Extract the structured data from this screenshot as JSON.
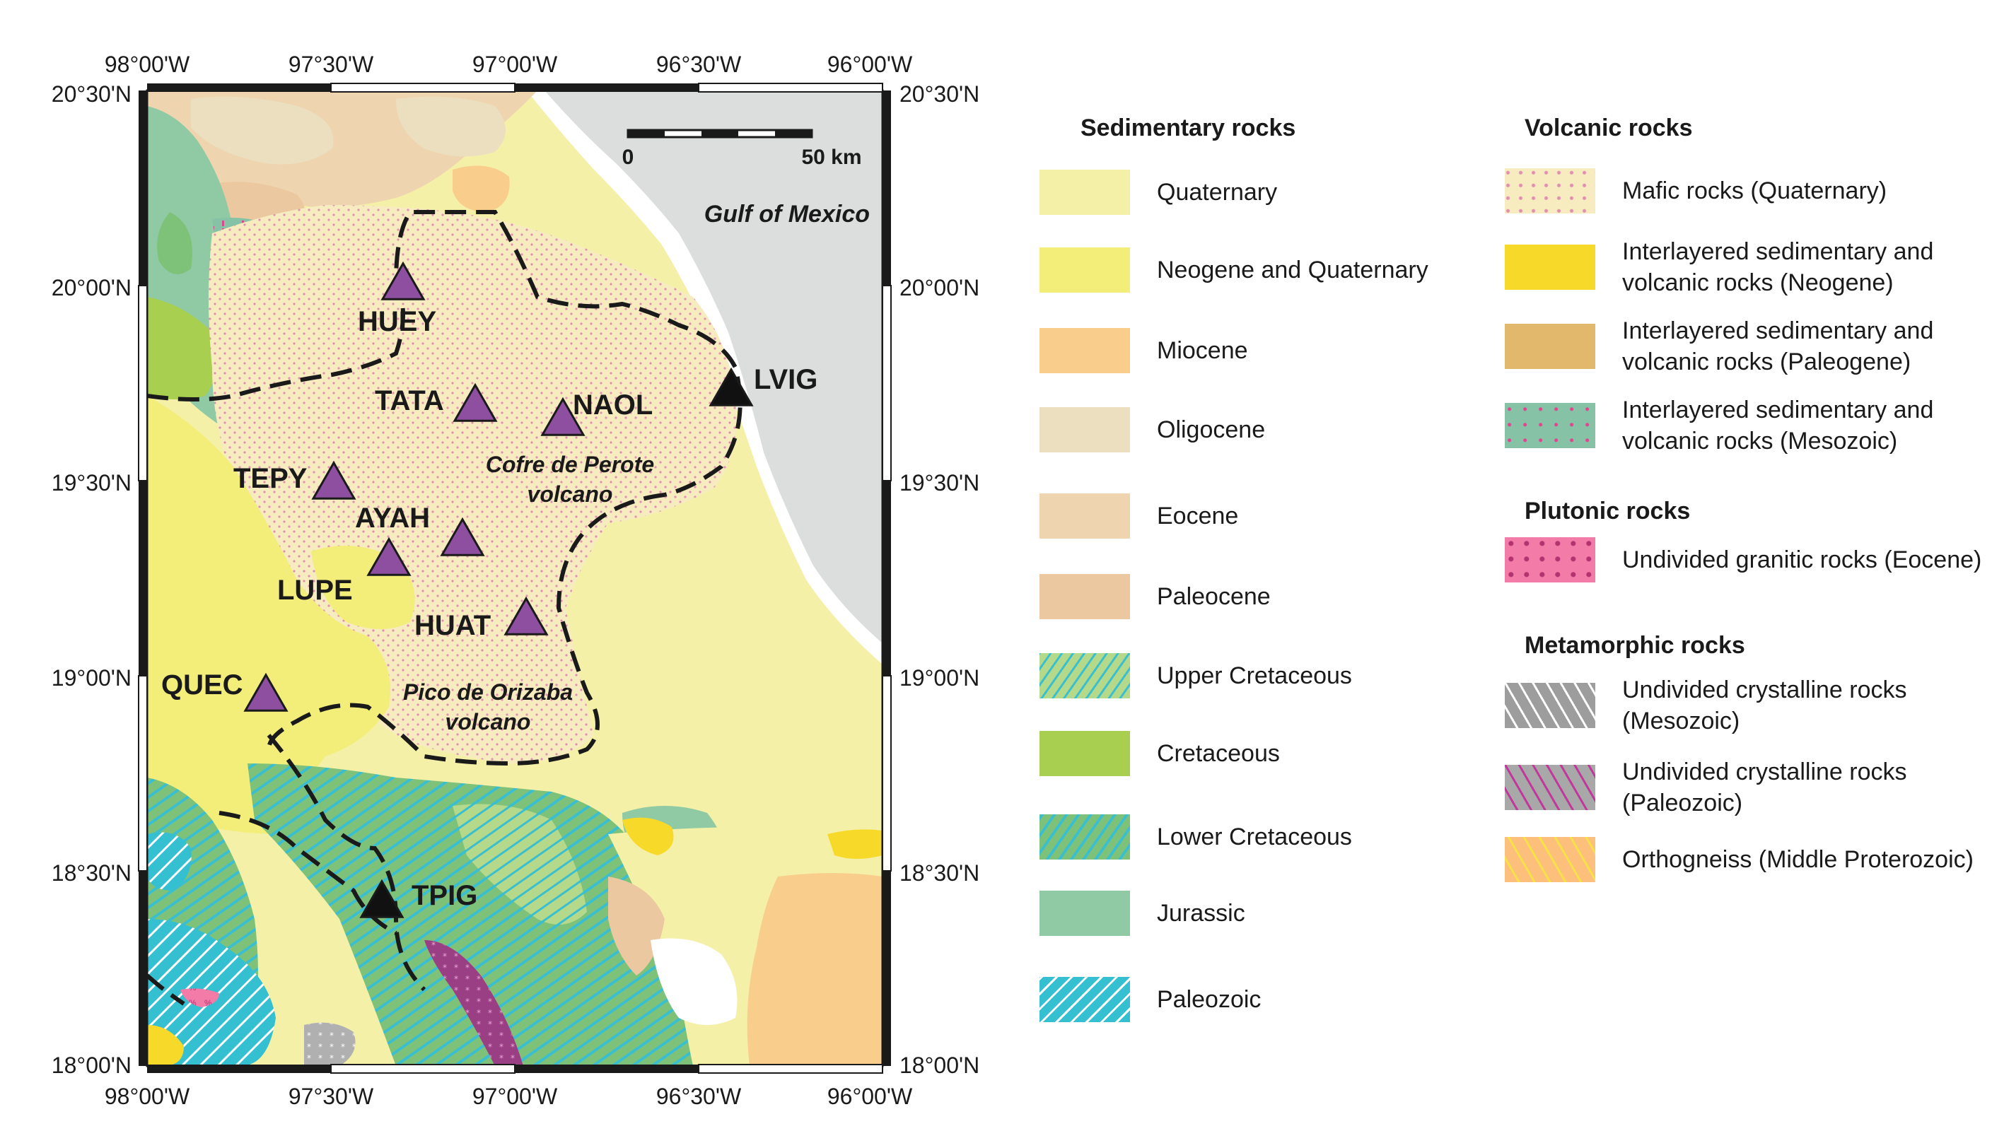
{
  "map": {
    "top_lon_labels": [
      "98°00'W",
      "97°30'W",
      "97°00'W",
      "96°30'W",
      "96°00'W"
    ],
    "bottom_lon_labels": [
      "98°00'W",
      "97°30'W",
      "97°00'W",
      "96°30'W",
      "96°00'W"
    ],
    "left_lat_labels": [
      "20°30'N",
      "20°00'N",
      "19°30'N",
      "19°00'N",
      "18°30'N",
      "18°00'N"
    ],
    "right_lat_labels": [
      "20°30'N",
      "20°00'N",
      "19°30'N",
      "19°00'N",
      "18°30'N",
      "18°00'N"
    ],
    "scale_bar": {
      "start_label": "0",
      "end_label": "50 km"
    },
    "water_label": "Gulf of Mexico",
    "volcanoes": [
      {
        "line1": "Cofre de Perote",
        "line2": "volcano"
      },
      {
        "line1": "Pico de Orizaba",
        "line2": "volcano"
      }
    ],
    "stations": [
      {
        "code": "HUEY",
        "kind": "purple"
      },
      {
        "code": "TATA",
        "kind": "purple"
      },
      {
        "code": "NAOL",
        "kind": "purple"
      },
      {
        "code": "LVIG",
        "kind": "black"
      },
      {
        "code": "TEPY",
        "kind": "purple"
      },
      {
        "code": "AYAH",
        "kind": "purple"
      },
      {
        "code": "LUPE",
        "kind": "purple"
      },
      {
        "code": "HUAT",
        "kind": "purple"
      },
      {
        "code": "QUEC",
        "kind": "purple"
      },
      {
        "code": "TPIG",
        "kind": "black"
      }
    ],
    "station_colors": {
      "purple": "#8e4fa0",
      "black": "#111111"
    }
  },
  "legend": {
    "sedimentary": {
      "heading": "Sedimentary rocks",
      "items": [
        {
          "label": "Quaternary",
          "color": "#f5f0a8"
        },
        {
          "label": "Neogene and Quaternary",
          "color": "#f3ed7a"
        },
        {
          "label": "Miocene",
          "color": "#f9cd8c"
        },
        {
          "label": "Oligocene",
          "color": "#ecdfc0"
        },
        {
          "label": "Eocene",
          "color": "#eed5b0"
        },
        {
          "label": "Paleocene",
          "color": "#ebc89f"
        },
        {
          "label": "Upper Cretaceous",
          "color": "#b5d98a"
        },
        {
          "label": "Cretaceous",
          "color": "#a8cf4f"
        },
        {
          "label": "Lower Cretaceous",
          "color": "#7ec27a"
        },
        {
          "label": "Jurassic",
          "color": "#8fcaa4"
        },
        {
          "label": "Paleozoic",
          "color": "#34c0d0"
        }
      ]
    },
    "volcanic": {
      "heading": "Volcanic rocks",
      "items": [
        {
          "label1": "Mafic rocks (Quaternary)",
          "label2": "",
          "color": "#f7ecc0"
        },
        {
          "label1": "Interlayered sedimentary and",
          "label2": "volcanic rocks (Neogene)",
          "color": "#f7d92a"
        },
        {
          "label1": "Interlayered sedimentary and",
          "label2": "volcanic rocks (Paleogene)",
          "color": "#e2b96c"
        },
        {
          "label1": "Interlayered sedimentary and",
          "label2": "volcanic rocks (Mesozoic)",
          "color": "#85c2a6"
        }
      ]
    },
    "plutonic": {
      "heading": "Plutonic rocks",
      "items": [
        {
          "label1": "Undivided granitic rocks (Eocene)",
          "label2": "",
          "color": "#f27ba8"
        }
      ]
    },
    "metamorphic": {
      "heading": "Metamorphic rocks",
      "items": [
        {
          "label1": "Undivided crystalline rocks",
          "label2": "(Mesozoic)",
          "color": "#9d9d9d"
        },
        {
          "label1": "Undivided crystalline rocks",
          "label2": "(Paleozoic)",
          "color": "#a8a8a8"
        },
        {
          "label1": "Orthogneiss (Middle Proterozoic)",
          "label2": "",
          "color": "#fcc07c"
        }
      ]
    }
  }
}
